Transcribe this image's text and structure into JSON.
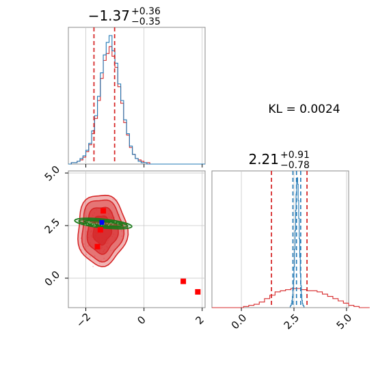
{
  "colors": {
    "red": "#d62728",
    "blue": "#1f77b4",
    "green": "#1a7a1a",
    "marker_red": "#ff0000",
    "marker_blue": "#0000ff"
  },
  "kl_label": "KL = 0.0024",
  "chart_data": [
    {
      "type": "histogram",
      "panel": "top-left (marginal of parameter 1)",
      "title": {
        "value": "−1.37",
        "plus": "+0.36",
        "minus": "−0.35"
      },
      "xlim": [
        -2.6,
        2.1
      ],
      "xticks": [
        -2,
        0,
        2
      ],
      "grid": true,
      "quantile_lines": [
        -1.72,
        -1.01
      ],
      "series": [
        {
          "color": "red",
          "bins_x_start": -2.6,
          "bin_width": 0.1,
          "counts": [
            0,
            1,
            1,
            2,
            3,
            5,
            9,
            14,
            22,
            33,
            46,
            62,
            75,
            80,
            85,
            78,
            70,
            56,
            44,
            30,
            21,
            12,
            7,
            4,
            3,
            2,
            1,
            1,
            0,
            0,
            0,
            0,
            0,
            0,
            0,
            0,
            0,
            0,
            0,
            0,
            0,
            0,
            0,
            0,
            0,
            0,
            0
          ]
        },
        {
          "color": "blue",
          "bins_x_start": -2.6,
          "bin_width": 0.1,
          "counts": [
            0,
            1,
            1,
            2,
            4,
            6,
            10,
            15,
            24,
            35,
            49,
            66,
            79,
            88,
            93,
            82,
            73,
            58,
            46,
            32,
            22,
            13,
            7,
            4,
            2,
            1,
            1,
            0,
            0,
            0,
            0,
            0,
            0,
            0,
            0,
            0,
            0,
            0,
            0,
            0,
            0,
            0,
            0,
            0,
            0,
            0,
            0
          ]
        }
      ]
    },
    {
      "type": "contour-scatter",
      "panel": "bottom-left (joint distribution)",
      "xlim": [
        -2.6,
        2.1
      ],
      "ylim": [
        -1.4,
        5.1
      ],
      "xticks": [
        -2,
        0,
        2
      ],
      "yticks": [
        0.0,
        2.5,
        5.0
      ],
      "xticklabels": [
        "−2",
        "0",
        "2"
      ],
      "yticklabels": [
        "0.0",
        "2.5",
        "5.0"
      ],
      "grid": true,
      "red_density_center": [
        -1.45,
        2.3
      ],
      "green_density_center": [
        -1.4,
        2.6
      ],
      "red_markers": [
        [
          -1.4,
          3.2
        ],
        [
          -1.5,
          2.3
        ],
        [
          -1.6,
          1.5
        ],
        [
          1.35,
          -0.15
        ],
        [
          1.85,
          -0.65
        ]
      ],
      "blue_markers": [
        [
          -1.45,
          2.65
        ]
      ]
    },
    {
      "type": "histogram",
      "panel": "bottom-right (marginal of parameter 2)",
      "title": {
        "value": "2.21",
        "plus": "+0.91",
        "minus": "−0.78"
      },
      "xlim": [
        -1.4,
        5.1
      ],
      "xticks": [
        0.0,
        2.5,
        5.0
      ],
      "xticklabels": [
        "0.0",
        "2.5",
        "5.0"
      ],
      "grid": true,
      "red_quantile_lines": [
        1.43,
        2.21,
        3.12
      ],
      "blue_quantile_lines": [
        2.45,
        2.62,
        2.82
      ],
      "series": [
        {
          "color": "red",
          "bins_x_start": -1.4,
          "bin_width": 0.25,
          "counts": [
            0,
            0,
            0,
            0,
            0,
            0,
            1,
            2,
            3,
            5,
            8,
            11,
            14,
            15,
            16,
            17,
            17,
            16,
            15,
            15,
            14,
            12,
            10,
            8,
            6,
            4,
            2,
            1,
            0,
            0
          ]
        },
        {
          "color": "blue",
          "bins_x_start": 2.3,
          "bin_width": 0.025,
          "counts": [
            1,
            2,
            3,
            5,
            9,
            14,
            22,
            34,
            50,
            72,
            95,
            120,
            140,
            155,
            160,
            152,
            132,
            110,
            85,
            62,
            42,
            27,
            16,
            9,
            5,
            3,
            2,
            1
          ]
        }
      ]
    }
  ]
}
